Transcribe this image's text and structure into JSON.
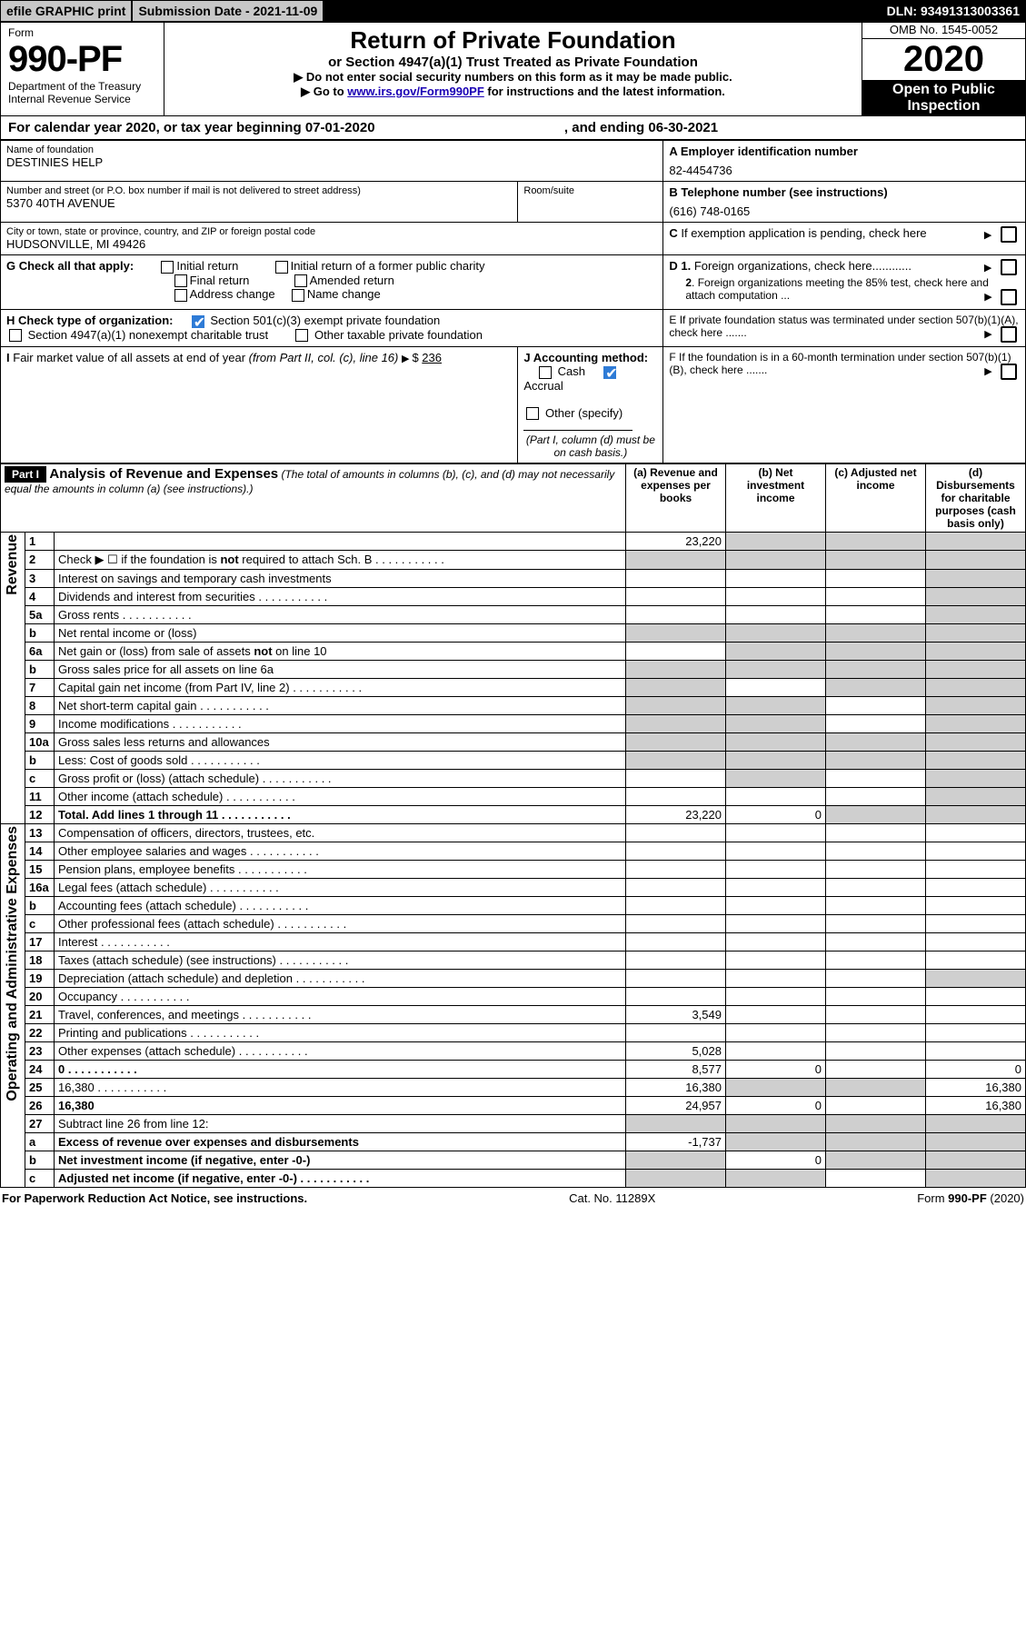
{
  "topbar": {
    "efile": "efile GRAPHIC print",
    "subdate": "Submission Date - 2021-11-09",
    "dln": "DLN: 93491313003361"
  },
  "header": {
    "form_word": "Form",
    "form_no": "990-PF",
    "dept": "Department of the Treasury",
    "irs": "Internal Revenue Service",
    "title": "Return of Private Foundation",
    "subtitle": "or Section 4947(a)(1) Trust Treated as Private Foundation",
    "instr1": "▶ Do not enter social security numbers on this form as it may be made public.",
    "instr2_pre": "▶ Go to ",
    "instr2_link": "www.irs.gov/Form990PF",
    "instr2_post": " for instructions and the latest information.",
    "omb": "OMB No. 1545-0052",
    "year": "2020",
    "open": "Open to Public Inspection"
  },
  "calyear": {
    "pre": "For calendar year 2020, or tax year beginning ",
    "start": "07-01-2020",
    "mid": " , and ending ",
    "end": "06-30-2021"
  },
  "entity": {
    "name_label": "Name of foundation",
    "name": "DESTINIES HELP",
    "addr_label": "Number and street (or P.O. box number if mail is not delivered to street address)",
    "addr": "5370 40TH AVENUE",
    "room_label": "Room/suite",
    "city_label": "City or town, state or province, country, and ZIP or foreign postal code",
    "city": "HUDSONVILLE, MI  49426",
    "A_label": "A Employer identification number",
    "A_val": "82-4454736",
    "B_label": "B Telephone number (see instructions)",
    "B_val": "(616) 748-0165",
    "C_label": "C If exemption application is pending, check here"
  },
  "G": {
    "label": "G Check all that apply:",
    "initial": "Initial return",
    "final": "Final return",
    "addrchg": "Address change",
    "initialformer": "Initial return of a former public charity",
    "amended": "Amended return",
    "namechg": "Name change"
  },
  "H": {
    "label": "H Check type of organization:",
    "c3": "Section 501(c)(3) exempt private foundation",
    "nect": "Section 4947(a)(1) nonexempt charitable trust",
    "othertax": "Other taxable private foundation"
  },
  "I": {
    "label": "I Fair market value of all assets at end of year (from Part II, col. (c), line 16)",
    "arrow_prefix": "▶ $ ",
    "value": "236"
  },
  "J": {
    "label": "J Accounting method:",
    "cash": "Cash",
    "accrual": "Accrual",
    "other": "Other (specify)",
    "note": "(Part I, column (d) must be on cash basis.)"
  },
  "D": {
    "d1": "D 1. Foreign organizations, check here............",
    "d2": "2. Foreign organizations meeting the 85% test, check here and attach computation ..."
  },
  "E": "E  If private foundation status was terminated under section 507(b)(1)(A), check here .......",
  "F": "F  If the foundation is in a 60-month termination under section 507(b)(1)(B), check here .......",
  "part1": {
    "tab": "Part I",
    "title": "Analysis of Revenue and Expenses",
    "title_note": " (The total of amounts in columns (b), (c), and (d) may not necessarily equal the amounts in column (a) (see instructions).)",
    "col_a": "(a)  Revenue and expenses per books",
    "col_b": "(b)  Net investment income",
    "col_c": "(c)  Adjusted net income",
    "col_d": "(d)  Disbursements for charitable purposes (cash basis only)"
  },
  "sidelabels": {
    "rev": "Revenue",
    "exp": "Operating and Administrative Expenses"
  },
  "rows": [
    {
      "n": "1",
      "d": "",
      "a": "23,220",
      "b": "",
      "c": "",
      "bs": true,
      "cs": true,
      "ds": true
    },
    {
      "n": "2",
      "d": "Check ▶ ☐ if the foundation is not required to attach Sch. B",
      "dots": true,
      "bs": true,
      "cs": true,
      "ds": true,
      "as": true,
      "nodata": true
    },
    {
      "n": "3",
      "d": "Interest on savings and temporary cash investments",
      "ds": true
    },
    {
      "n": "4",
      "d": "Dividends and interest from securities",
      "dots": true,
      "ds": true
    },
    {
      "n": "5a",
      "d": "Gross rents",
      "dots": true,
      "ds": true
    },
    {
      "n": "b",
      "d": "Net rental income or (loss)",
      "underline": true,
      "as": true,
      "bs": true,
      "cs": true,
      "ds": true
    },
    {
      "n": "6a",
      "d": "Net gain or (loss) from sale of assets not on line 10",
      "bs": true,
      "cs": true,
      "ds": true
    },
    {
      "n": "b",
      "d": "Gross sales price for all assets on line 6a",
      "underline": true,
      "as": true,
      "bs": true,
      "cs": true,
      "ds": true
    },
    {
      "n": "7",
      "d": "Capital gain net income (from Part IV, line 2)",
      "dots": true,
      "as": true,
      "cs": true,
      "ds": true
    },
    {
      "n": "8",
      "d": "Net short-term capital gain",
      "dots": true,
      "as": true,
      "bs": true,
      "ds": true
    },
    {
      "n": "9",
      "d": "Income modifications",
      "dots": true,
      "as": true,
      "bs": true,
      "ds": true
    },
    {
      "n": "10a",
      "d": "Gross sales less returns and allowances",
      "box": true,
      "as": true,
      "bs": true,
      "cs": true,
      "ds": true
    },
    {
      "n": "b",
      "d": "Less: Cost of goods sold",
      "dots": true,
      "box": true,
      "as": true,
      "bs": true,
      "cs": true,
      "ds": true
    },
    {
      "n": "c",
      "d": "Gross profit or (loss) (attach schedule)",
      "dots": true,
      "bs": true,
      "ds": true
    },
    {
      "n": "11",
      "d": "Other income (attach schedule)",
      "dots": true,
      "ds": true
    },
    {
      "n": "12",
      "d": "Total. Add lines 1 through 11",
      "dots": true,
      "bold": true,
      "a": "23,220",
      "b": "0",
      "cs": true,
      "ds": true
    }
  ],
  "exp_rows": [
    {
      "n": "13",
      "d": "Compensation of officers, directors, trustees, etc."
    },
    {
      "n": "14",
      "d": "Other employee salaries and wages",
      "dots": true
    },
    {
      "n": "15",
      "d": "Pension plans, employee benefits",
      "dots": true
    },
    {
      "n": "16a",
      "d": "Legal fees (attach schedule)",
      "dots": true
    },
    {
      "n": "b",
      "d": "Accounting fees (attach schedule)",
      "dots": true
    },
    {
      "n": "c",
      "d": "Other professional fees (attach schedule)",
      "dots": true
    },
    {
      "n": "17",
      "d": "Interest",
      "dots": true
    },
    {
      "n": "18",
      "d": "Taxes (attach schedule) (see instructions)",
      "dots": true
    },
    {
      "n": "19",
      "d": "Depreciation (attach schedule) and depletion",
      "dots": true,
      "ds": true
    },
    {
      "n": "20",
      "d": "Occupancy",
      "dots": true
    },
    {
      "n": "21",
      "d": "Travel, conferences, and meetings",
      "dots": true,
      "a": "3,549"
    },
    {
      "n": "22",
      "d": "Printing and publications",
      "dots": true
    },
    {
      "n": "23",
      "d": "Other expenses (attach schedule)",
      "dots": true,
      "a": "5,028"
    },
    {
      "n": "24",
      "d": "0",
      "dots": true,
      "bold": true,
      "a": "8,577",
      "b": "0"
    },
    {
      "n": "25",
      "d": "16,380",
      "dots": true,
      "a": "16,380",
      "bs": true,
      "cs": true
    },
    {
      "n": "26",
      "d": "16,380",
      "bold": true,
      "a": "24,957",
      "b": "0"
    },
    {
      "n": "27",
      "d": "Subtract line 26 from line 12:",
      "as": true,
      "bs": true,
      "cs": true,
      "ds": true
    },
    {
      "n": "a",
      "d": "Excess of revenue over expenses and disbursements",
      "bold": true,
      "a": "-1,737",
      "bs": true,
      "cs": true,
      "ds": true
    },
    {
      "n": "b",
      "d": "Net investment income (if negative, enter -0-)",
      "bold": true,
      "as": true,
      "b": "0",
      "cs": true,
      "ds": true
    },
    {
      "n": "c",
      "d": "Adjusted net income (if negative, enter -0-)",
      "dots": true,
      "bold": true,
      "as": true,
      "bs": true,
      "ds": true
    }
  ],
  "footer": {
    "left": "For Paperwork Reduction Act Notice, see instructions.",
    "mid": "Cat. No. 11289X",
    "right": "Form 990-PF (2020)"
  }
}
